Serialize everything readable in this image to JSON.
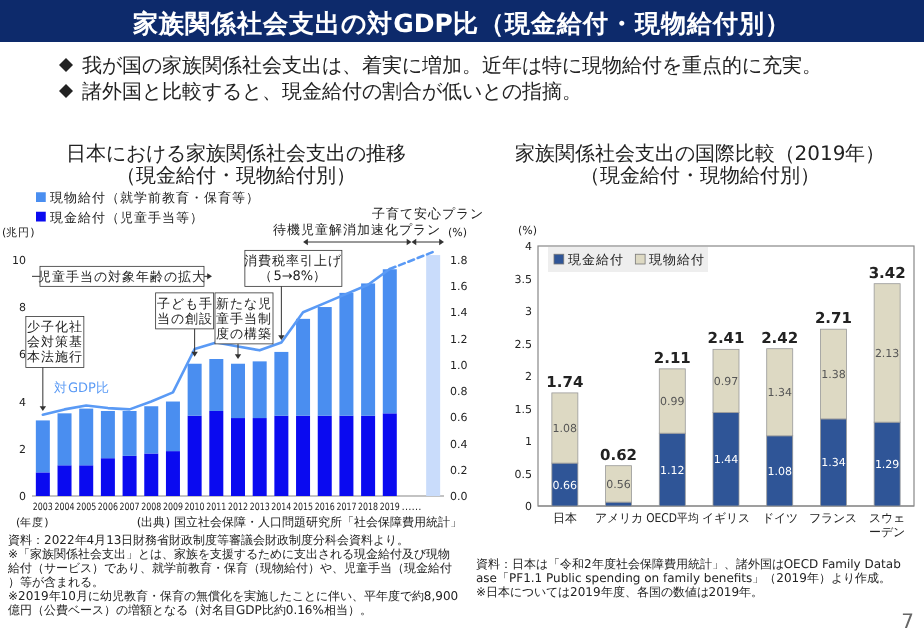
{
  "chart_data": [
    {
      "type": "other",
      "title": "家族関係社会支出の対GDP比（現金給付・現物給付別）",
      "annotations": [
        "我が国の家族関係社会支出は、着実に増加。近年は特に現物給付を重点的に充実。",
        "諸外国と比較すると、現金給付の割合が低いとの指摘。",
        "7"
      ]
    },
    {
      "type": "bar",
      "stacked": true,
      "title": "日本における家族関係社会支出の推移",
      "subtitle": "（現金給付・現物給付別）",
      "categories": [
        "2003",
        "2004",
        "2005",
        "2006",
        "2007",
        "2008",
        "2009",
        "2010",
        "2011",
        "2012",
        "2013",
        "2014",
        "2015",
        "2016",
        "2017",
        "2018",
        "2019",
        "……",
        null
      ],
      "xlabel": "(年度)",
      "ylabel": "(兆円)",
      "y2label": "(%)",
      "ylim": [
        0,
        10.5
      ],
      "yticks": [
        0,
        2,
        4,
        6,
        8,
        10
      ],
      "y2lim": [
        0,
        1.89
      ],
      "y2ticks": [
        {
          "value": 0,
          "label": "0.0"
        },
        {
          "value": 0.2,
          "label": "0.2"
        },
        {
          "value": 0.4,
          "label": "0.4"
        },
        {
          "value": 0.6,
          "label": "0.6"
        },
        {
          "value": 0.8,
          "label": "0.8"
        },
        {
          "value": 1.0,
          "label": "1.0"
        },
        {
          "value": 1.2,
          "label": "1.2"
        },
        {
          "value": 1.4,
          "label": "1.4"
        },
        {
          "value": 1.6,
          "label": "1.6"
        },
        {
          "value": 1.8,
          "label": "1.8"
        }
      ],
      "legend": "top left",
      "series": [
        {
          "name": "現金給付（児童手当等）",
          "color": "#0a0af0",
          "values": [
            1.0,
            1.3,
            1.3,
            1.6,
            1.7,
            1.8,
            1.9,
            3.4,
            3.6,
            3.3,
            3.3,
            3.4,
            3.4,
            3.4,
            3.4,
            3.4,
            3.5,
            null,
            null
          ]
        },
        {
          "name": "現物給付（就学前教育・保育等）",
          "color": "#4a8ef0",
          "values": [
            2.2,
            2.2,
            2.4,
            2.0,
            1.9,
            2.0,
            2.1,
            2.2,
            2.2,
            2.3,
            2.4,
            2.7,
            4.1,
            4.6,
            5.2,
            5.6,
            6.1,
            null,
            null
          ]
        },
        {
          "color": "#c9dcfb",
          "values": [
            null,
            null,
            null,
            null,
            null,
            null,
            null,
            null,
            null,
            null,
            null,
            null,
            null,
            null,
            null,
            null,
            null,
            null,
            10.2
          ]
        },
        {
          "name": "対GDP比",
          "type": "line",
          "axis": "y2",
          "color": "#5a9af5",
          "values": [
            0.62,
            0.66,
            0.69,
            0.67,
            0.66,
            0.72,
            0.79,
            1.12,
            1.17,
            1.14,
            1.11,
            1.17,
            1.4,
            1.47,
            1.54,
            1.61,
            1.73,
            null,
            null
          ]
        },
        {
          "type": "line",
          "axis": "y2",
          "line_style": "dashed",
          "color": "#5a9af5",
          "values": [
            null,
            null,
            null,
            null,
            null,
            null,
            null,
            null,
            null,
            null,
            null,
            null,
            null,
            null,
            null,
            null,
            1.73,
            null,
            1.86
          ]
        }
      ],
      "annotations": [
        {
          "text": "少子化社会対策基本法施行",
          "x": "2003",
          "y": 3.6
        },
        {
          "text": "子ども手当の創設",
          "x": "2010",
          "y": 5.9
        },
        {
          "text": "新たな児童手当制度の構築",
          "x": "2012",
          "y": 5.8
        },
        {
          "text": "消費税率引上げ（5→8%）",
          "x": "2014",
          "y": 6.6
        },
        "児童手当の対象年齢の拡大",
        "待機児童解消加速化プラン",
        "子育て安心プラン",
        "(出典) 国立社会保障・人口問題研究所「社会保障費用統計」",
        "資料：2022年4月13日財務省財政制度等審議会財政制度分科会資料より。",
        "※「家族関係社会支出」とは、家族を支援するために支出される現金給付及び現物給付（サービス）であり、就学前教育・保育（現物給付）や、児童手当（現金給付）等が含まれる。",
        "※2019年10月に幼児教育・保育の無償化を実施したことに伴い、平年度で約8,900億円（公費ベース）の増額となる（対名目GDP比約0.16%相当）。"
      ]
    },
    {
      "type": "bar",
      "stacked": true,
      "title": "家族関係社会支出の国際比較（2019年）",
      "subtitle": "（現金給付・現物給付別）",
      "categories": [
        "日本",
        "アメリカ",
        "OECD平均",
        "イギリス",
        "ドイツ",
        "フランス",
        "スウェーデン"
      ],
      "ylabel": "(%)",
      "ylim": [
        0,
        4
      ],
      "yticks": [
        0,
        0.5,
        1,
        1.5,
        2,
        2.5,
        3,
        3.5,
        4
      ],
      "legend": "top left",
      "series": [
        {
          "name": "現金給付",
          "color": "#2f5597",
          "values": [
            0.66,
            0.06,
            1.12,
            1.44,
            1.08,
            1.34,
            1.29
          ],
          "value_labels": [
            "0.66",
            null,
            "1.12",
            "1.44",
            "1.08",
            "1.34",
            "1.29"
          ]
        },
        {
          "name": "現物給付",
          "color": "#ddd9c3",
          "values": [
            1.08,
            0.56,
            0.99,
            0.97,
            1.34,
            1.38,
            2.13
          ],
          "value_labels": [
            "1.08",
            "0.56",
            "0.99",
            "0.97",
            "1.34",
            "1.38",
            "2.13"
          ]
        }
      ],
      "totals": [
        "1.74",
        "0.62",
        "2.11",
        "2.41",
        "2.42",
        "2.71",
        "3.42"
      ],
      "annotations": [
        "資料：日本は「令和2年度社会保障費用統計」、諸外国はOECD Family Database「PF1.1 Public spending on family benefits」（2019年）より作成。",
        "※日本については2019年度、各国の数値は2019年。"
      ]
    }
  ]
}
